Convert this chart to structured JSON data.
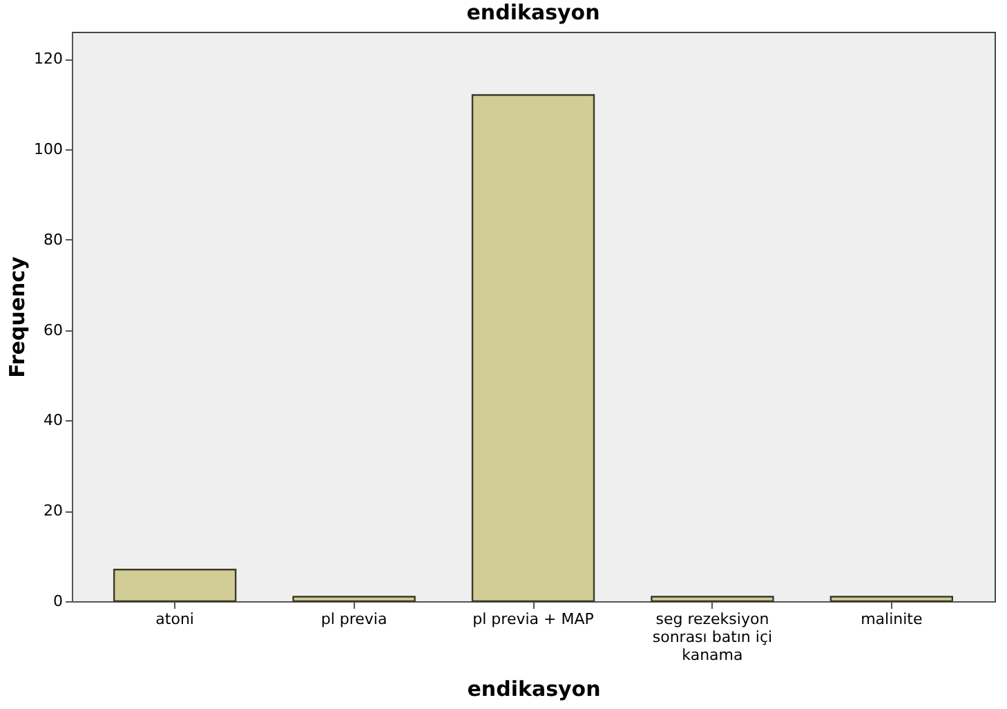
{
  "chart_data": {
    "type": "bar",
    "title": "endikasyon",
    "xlabel": "endikasyon",
    "ylabel": "Frequency",
    "categories": [
      "atoni",
      "pl previa",
      "pl previa + MAP",
      "seg rezeksiyon sonrası batın içi kanama",
      "malinite"
    ],
    "values": [
      7,
      1,
      112,
      1,
      1
    ],
    "color": "#d2cd96",
    "ylim": [
      0,
      126
    ],
    "yticks": [
      0,
      20,
      40,
      60,
      80,
      100,
      120
    ],
    "grid": false
  }
}
